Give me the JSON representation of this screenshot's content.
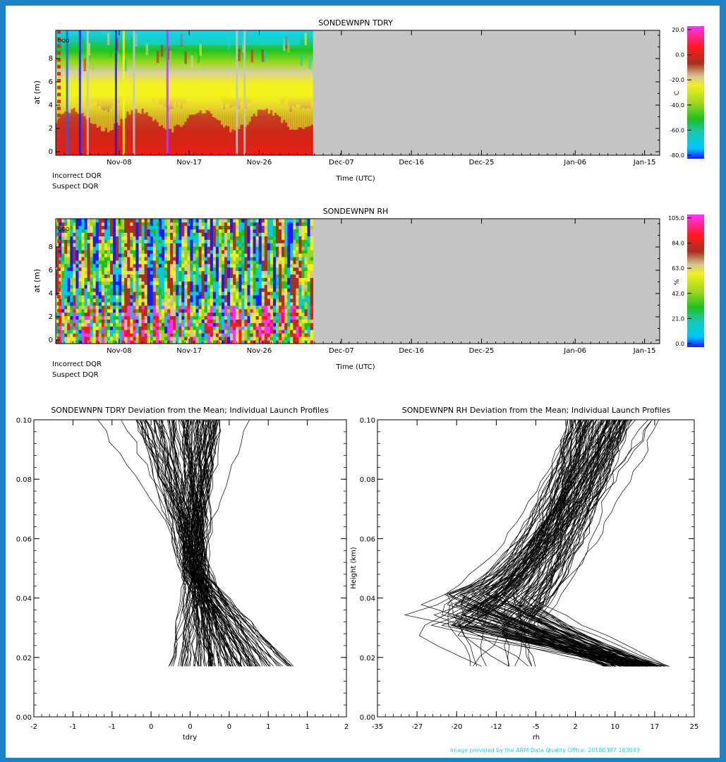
{
  "credit": "Image provided by the ARM Data Quality Office: 20180307.163043",
  "heatmaps": [
    {
      "key": "tdry",
      "title": "SONDEWNPN TDRY",
      "ylabel": "at (m)",
      "yticks": [
        "0",
        "2",
        "4",
        "6",
        "8"
      ],
      "xticks": [
        "Nov-08",
        "Nov-17",
        "Nov-26",
        "Dec-07",
        "Dec-16",
        "Dec-25",
        "Jan-06",
        "Jan-15"
      ],
      "xlabel": "Time (UTC)",
      "dqr_tag": "DQO",
      "incorrect_label": "Incorrect DQR",
      "suspect_label": "Suspect DQR",
      "cbar_ticks": [
        "20.0",
        "0.0",
        "-20.0",
        "-40.0",
        "-60.0",
        "-80.0"
      ],
      "cbar_unit": "C",
      "missing_color": "#c4c4c4"
    },
    {
      "key": "rh",
      "title": "SONDEWNPN RH",
      "ylabel": "at (m)",
      "yticks": [
        "0",
        "2",
        "4",
        "6",
        "8"
      ],
      "xticks": [
        "Nov-08",
        "Nov-17",
        "Nov-26",
        "Dec-07",
        "Dec-16",
        "Dec-25",
        "Jan-06",
        "Jan-15"
      ],
      "xlabel": "Time (UTC)",
      "dqr_tag": "DQO",
      "incorrect_label": "Incorrect DQR",
      "suspect_label": "Suspect DQR",
      "cbar_ticks": [
        "105.0",
        "84.0",
        "63.0",
        "42.0",
        "21.0",
        "0.0"
      ],
      "cbar_unit": "%",
      "missing_color": "#c4c4c4"
    }
  ],
  "profiles": [
    {
      "key": "tdry",
      "title": "SONDEWNPN TDRY Deviation from the Mean; Individual Launch Profiles",
      "xlabel": "tdry",
      "ylabel": "",
      "xticks": [
        "-2",
        "-1",
        "-1",
        "0",
        "0",
        "0",
        "1",
        "1",
        "2"
      ],
      "yticks": [
        "0.00",
        "0.02",
        "0.04",
        "0.06",
        "0.08",
        "0.10"
      ]
    },
    {
      "key": "rh",
      "title": "SONDEWNPN RH Deviation from the Mean; Individual Launch Profiles",
      "xlabel": "rh",
      "ylabel": "Height (km)",
      "xticks": [
        "-35",
        "-27",
        "-20",
        "-12",
        "-5",
        "2",
        "10",
        "17",
        "25"
      ],
      "yticks": [
        "0.00",
        "0.02",
        "0.04",
        "0.06",
        "0.08",
        "0.10"
      ]
    }
  ],
  "chart_data": [
    {
      "type": "heatmap",
      "title": "SONDEWNPN TDRY",
      "xlabel": "Time (UTC)",
      "ylabel": "at (m)",
      "x_ticks": [
        "Nov-08",
        "Nov-17",
        "Nov-26",
        "Dec-07",
        "Dec-16",
        "Dec-25",
        "Jan-06",
        "Jan-15"
      ],
      "y_ticks": [
        0,
        2,
        4,
        6,
        8
      ],
      "ylim": [
        0,
        10
      ],
      "data_coverage": [
        "Nov-01",
        "Dec-03"
      ],
      "colorbar": {
        "unit": "C",
        "ticks": [
          20.0,
          0.0,
          -20.0,
          -40.0,
          -60.0,
          -80.0
        ],
        "range": [
          -80.0,
          20.0
        ]
      },
      "legend": [
        "Incorrect DQR",
        "Suspect DQR"
      ]
    },
    {
      "type": "heatmap",
      "title": "SONDEWNPN RH",
      "xlabel": "Time (UTC)",
      "ylabel": "at (m)",
      "x_ticks": [
        "Nov-08",
        "Nov-17",
        "Nov-26",
        "Dec-07",
        "Dec-16",
        "Dec-25",
        "Jan-06",
        "Jan-15"
      ],
      "y_ticks": [
        0,
        2,
        4,
        6,
        8
      ],
      "ylim": [
        0,
        10
      ],
      "data_coverage": [
        "Nov-01",
        "Dec-03"
      ],
      "colorbar": {
        "unit": "%",
        "ticks": [
          105.0,
          84.0,
          63.0,
          42.0,
          21.0,
          0.0
        ],
        "range": [
          0.0,
          105.0
        ]
      },
      "legend": [
        "Incorrect DQR",
        "Suspect DQR"
      ]
    },
    {
      "type": "line",
      "title": "SONDEWNPN TDRY Deviation from the Mean; Individual Launch Profiles",
      "xlabel": "tdry",
      "ylabel": "",
      "xlim": [
        -2,
        2
      ],
      "ylim": [
        0.0,
        0.1
      ],
      "x_tick_labels": [
        "-2",
        "-1",
        "-1",
        "0",
        "0",
        "0",
        "1",
        "1",
        "2"
      ],
      "y_ticks": [
        0.0,
        0.02,
        0.04,
        0.06,
        0.08,
        0.1
      ],
      "profile_height_range": [
        0.017,
        0.1
      ],
      "n_profiles_approx": 120,
      "grid": false
    },
    {
      "type": "line",
      "title": "SONDEWNPN RH Deviation from the Mean; Individual Launch Profiles",
      "xlabel": "rh",
      "ylabel": "Height (km)",
      "xlim": [
        -35,
        25
      ],
      "ylim": [
        0.0,
        0.1
      ],
      "x_tick_labels": [
        "-35",
        "-27",
        "-20",
        "-12",
        "-5",
        "2",
        "10",
        "17",
        "25"
      ],
      "y_ticks": [
        0.0,
        0.02,
        0.04,
        0.06,
        0.08,
        0.1
      ],
      "profile_height_range": [
        0.017,
        0.1
      ],
      "n_profiles_approx": 120,
      "grid": false
    }
  ]
}
